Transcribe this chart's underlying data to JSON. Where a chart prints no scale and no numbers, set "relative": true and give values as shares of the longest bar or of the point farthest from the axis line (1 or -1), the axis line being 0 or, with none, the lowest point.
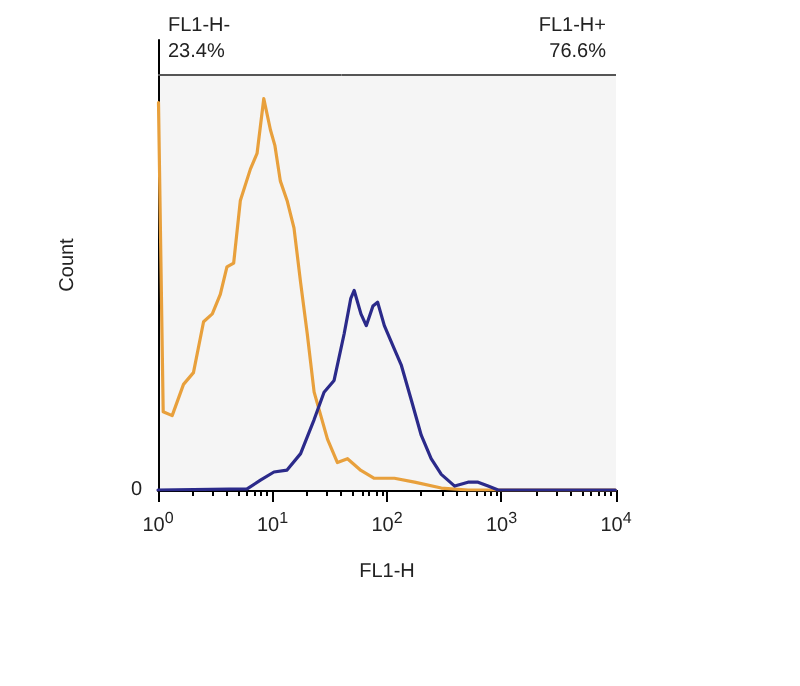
{
  "chart_data": {
    "type": "line",
    "relative": true,
    "xlabel": "FL1-H",
    "ylabel": "Count",
    "log": "x",
    "xlim": [
      1,
      10000
    ],
    "xticks": [
      {
        "value": 1,
        "label": "10$^{0}$"
      },
      {
        "value": 10,
        "label": "10$^{1}$"
      },
      {
        "value": 100,
        "label": "10$^{2}$"
      },
      {
        "value": 1000,
        "label": "10$^{3}$"
      },
      {
        "value": 10000,
        "label": "10$^{4}$"
      }
    ],
    "annotations": [
      "0"
    ],
    "grid": false,
    "marker": "none",
    "line_style": "solid",
    "series": [
      {
        "color": "#e8a03c",
        "x": [
          1.01,
          1.11,
          1.33,
          1.67,
          2.04,
          2.5,
          2.98,
          3.5,
          4.0,
          4.58,
          5.24,
          6.41,
          7.33,
          8.39,
          9.6,
          10.5,
          11.7,
          13.4,
          15.4,
          17.6,
          20.1,
          23.1,
          30.2,
          36.9,
          45.2,
          59.2,
          77.4,
          116,
          174,
          298,
          510,
          9860
        ],
        "values": [
          0.99,
          0.2,
          0.19,
          0.27,
          0.3,
          0.43,
          0.45,
          0.5,
          0.57,
          0.58,
          0.74,
          0.82,
          0.86,
          1.0,
          0.92,
          0.88,
          0.79,
          0.74,
          0.67,
          0.53,
          0.4,
          0.25,
          0.13,
          0.07,
          0.08,
          0.05,
          0.03,
          0.03,
          0.02,
          0.005,
          0,
          0
        ]
      },
      {
        "color": "#2b2a8a",
        "x": [
          1,
          6.0,
          7.85,
          10.3,
          13.4,
          17.6,
          23.1,
          28.2,
          34.5,
          42.3,
          48.3,
          51.7,
          59.2,
          65.9,
          75.4,
          82.8,
          94.8,
          116,
          133,
          163,
          199,
          243,
          298,
          390,
          510,
          624,
          764,
          935,
          9860
        ],
        "values": [
          0,
          0.003,
          0.025,
          0.046,
          0.051,
          0.093,
          0.18,
          0.25,
          0.28,
          0.4,
          0.49,
          0.51,
          0.45,
          0.42,
          0.47,
          0.48,
          0.42,
          0.36,
          0.32,
          0.23,
          0.14,
          0.08,
          0.04,
          0.01,
          0.02,
          0.02,
          0.01,
          0,
          0
        ]
      }
    ],
    "bands": [
      {
        "axis": "x",
        "from": 1,
        "to": 40,
        "label": "FL1-H-\n23.4%",
        "color": "#555555"
      },
      {
        "axis": "x",
        "from": 40,
        "to": 10000,
        "label": "FL1-H+\n76.6%",
        "color": "#555555"
      }
    ]
  }
}
